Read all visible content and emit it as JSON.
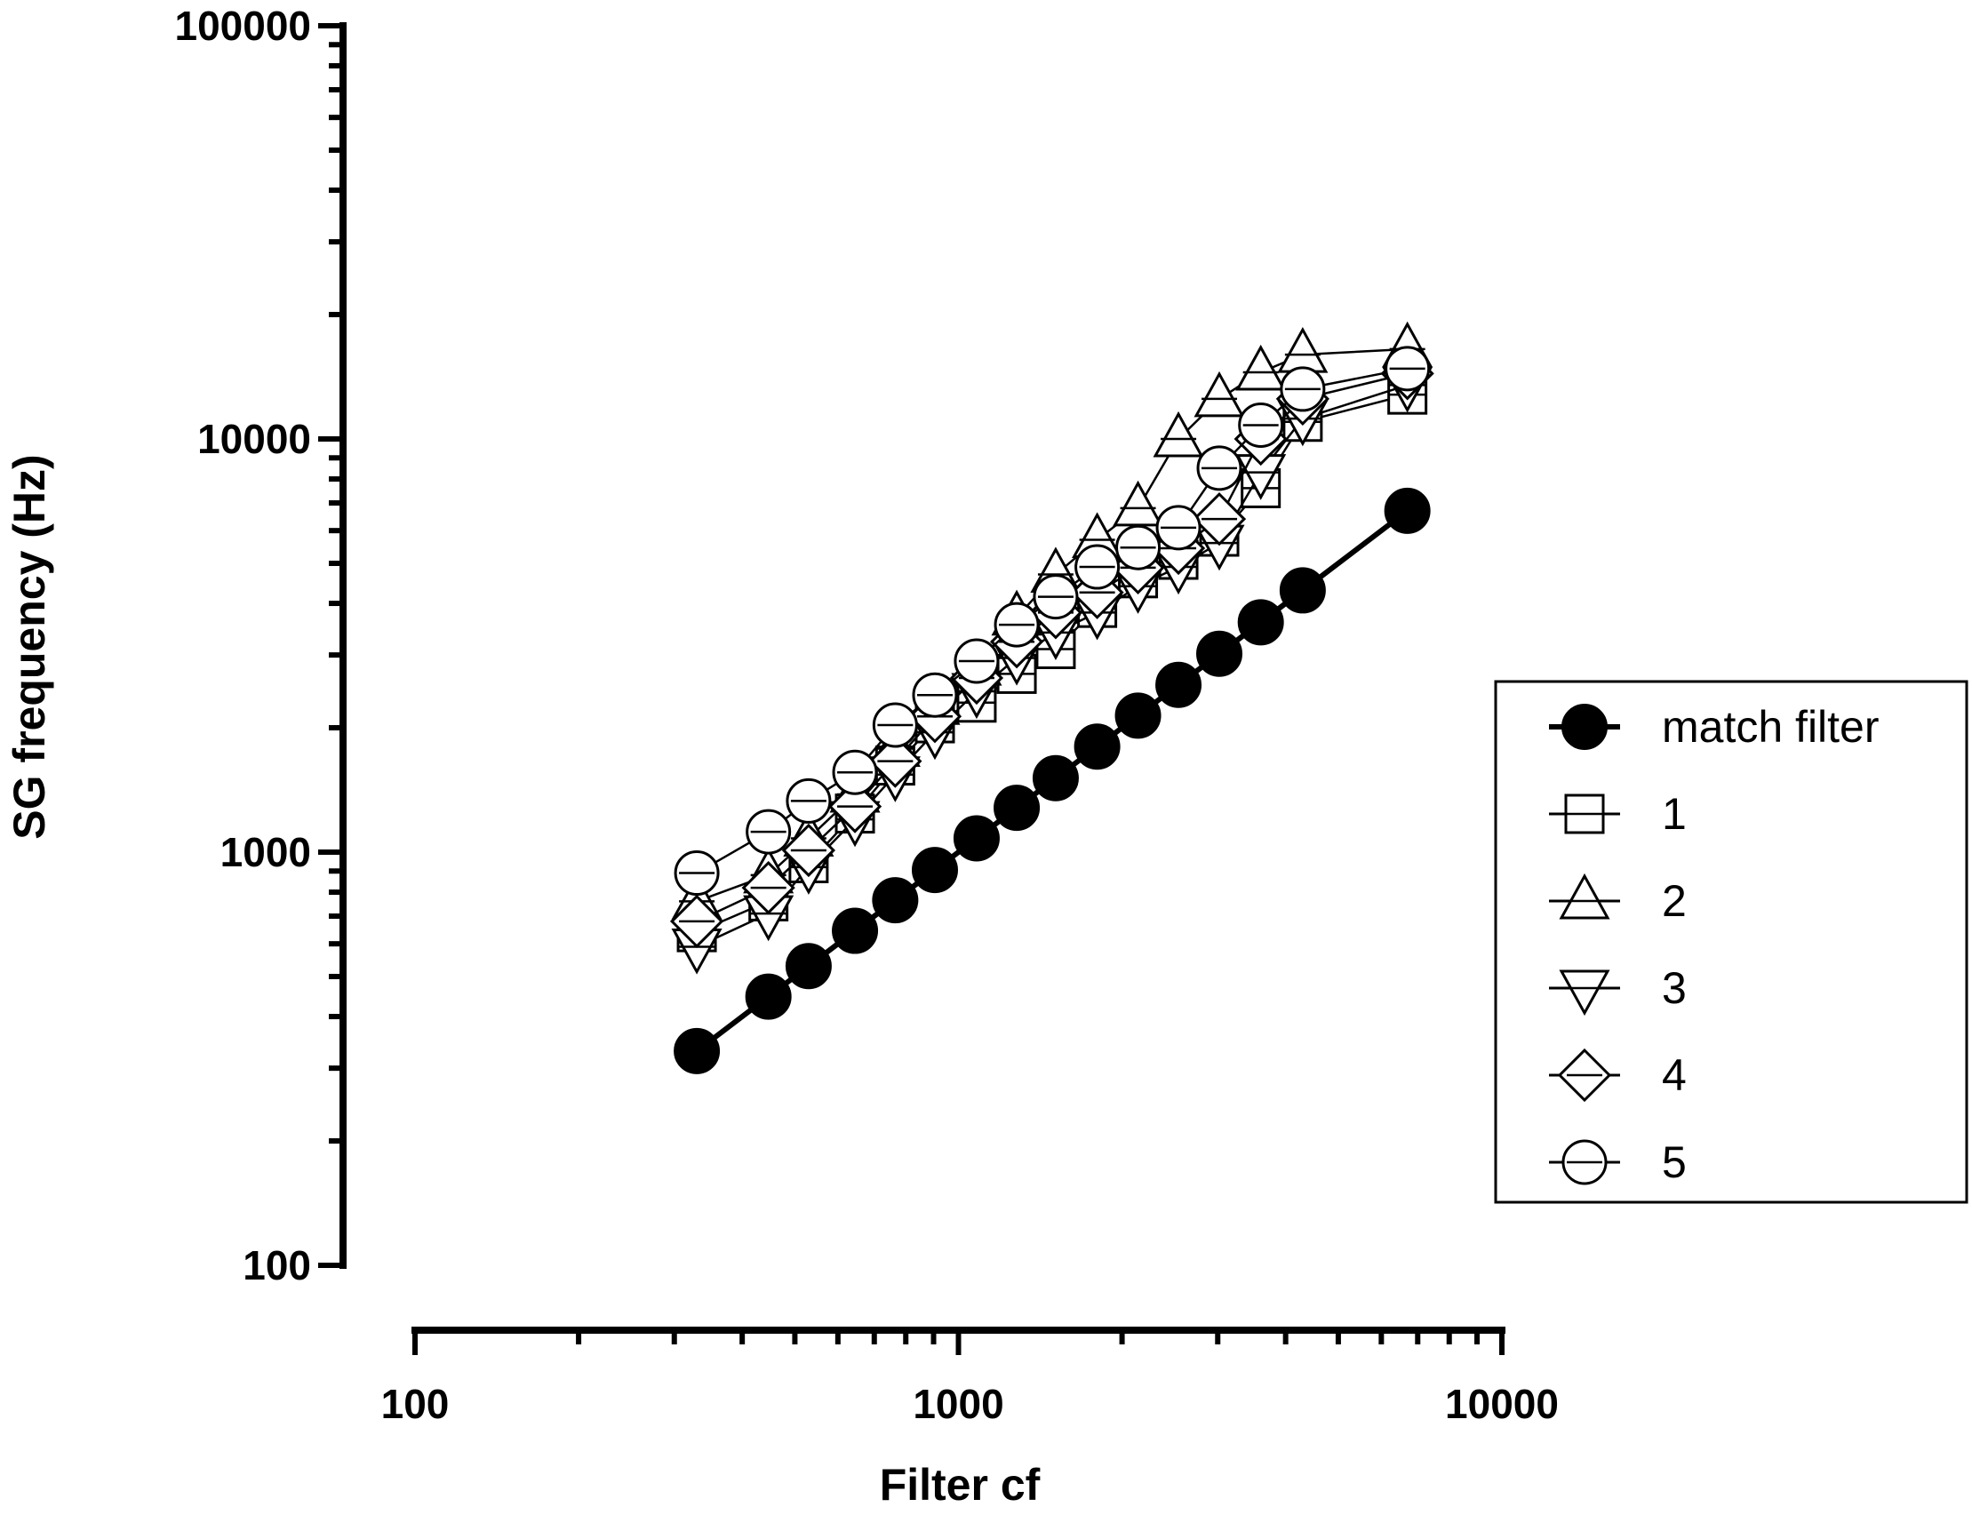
{
  "chart_data": {
    "type": "scatter",
    "xlabel": "Filter cf",
    "ylabel": "SG frequency (Hz)",
    "xscale": "log",
    "yscale": "log",
    "xlim": [
      100,
      10000
    ],
    "ylim": [
      100,
      100000
    ],
    "x_tick_labels": [
      "100",
      "1000",
      "10000"
    ],
    "y_tick_labels": [
      "100",
      "1000",
      "10000",
      "100000"
    ],
    "grid": false,
    "legend_position": "right",
    "x": [
      330,
      447,
      530,
      645,
      765,
      905,
      1080,
      1280,
      1510,
      1800,
      2140,
      2540,
      3020,
      3600,
      4300,
      6700
    ],
    "series": [
      {
        "name": "match filter",
        "marker": "filled-circle",
        "line_weight": "bold",
        "values": [
          330,
          447,
          530,
          645,
          765,
          905,
          1080,
          1280,
          1510,
          1800,
          2140,
          2540,
          3020,
          3600,
          4300,
          6700
        ]
      },
      {
        "name": "1",
        "marker": "square",
        "values": [
          640,
          760,
          940,
          1240,
          1620,
          2050,
          2300,
          2700,
          3100,
          3900,
          4600,
          5100,
          5800,
          7600,
          11000,
          12800
        ]
      },
      {
        "name": "2",
        "marker": "triangle-up",
        "values": [
          760,
          880,
          1080,
          1380,
          1780,
          2250,
          2800,
          3700,
          4700,
          5700,
          6800,
          10000,
          12500,
          14500,
          16000,
          16500
        ]
      },
      {
        "name": "3",
        "marker": "triangle-down",
        "values": [
          590,
          710,
          920,
          1200,
          1540,
          1950,
          2450,
          2950,
          3400,
          3800,
          4400,
          4900,
          5600,
          8300,
          11200,
          13500
        ]
      },
      {
        "name": "4",
        "marker": "diamond",
        "values": [
          680,
          820,
          1010,
          1290,
          1660,
          2130,
          2640,
          3230,
          3800,
          4250,
          4880,
          5440,
          6400,
          10000,
          12500,
          14400
        ]
      },
      {
        "name": "5",
        "marker": "circle",
        "values": [
          890,
          1120,
          1330,
          1560,
          2030,
          2400,
          2900,
          3550,
          4150,
          4900,
          5460,
          6100,
          8500,
          10800,
          13200,
          14800
        ]
      }
    ]
  }
}
